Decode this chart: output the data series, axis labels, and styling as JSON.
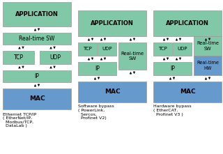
{
  "bg_color": "#ffffff",
  "green_color": "#80c8a8",
  "blue_color": "#6699cc",
  "text_color": "#000000",
  "diagram1": {
    "label": "Ethernet TCP/IP\n( EtherNet/IP,\n  Modbus/TCP,\n  DataLab )"
  },
  "diagram2": {
    "label": "Software bypass\n( PowerLink,\n  Sercos,\n  Profinet V2)"
  },
  "diagram3": {
    "label": "Hardware bypass\n( EtherCAT,\n  Profinet V3 )"
  }
}
